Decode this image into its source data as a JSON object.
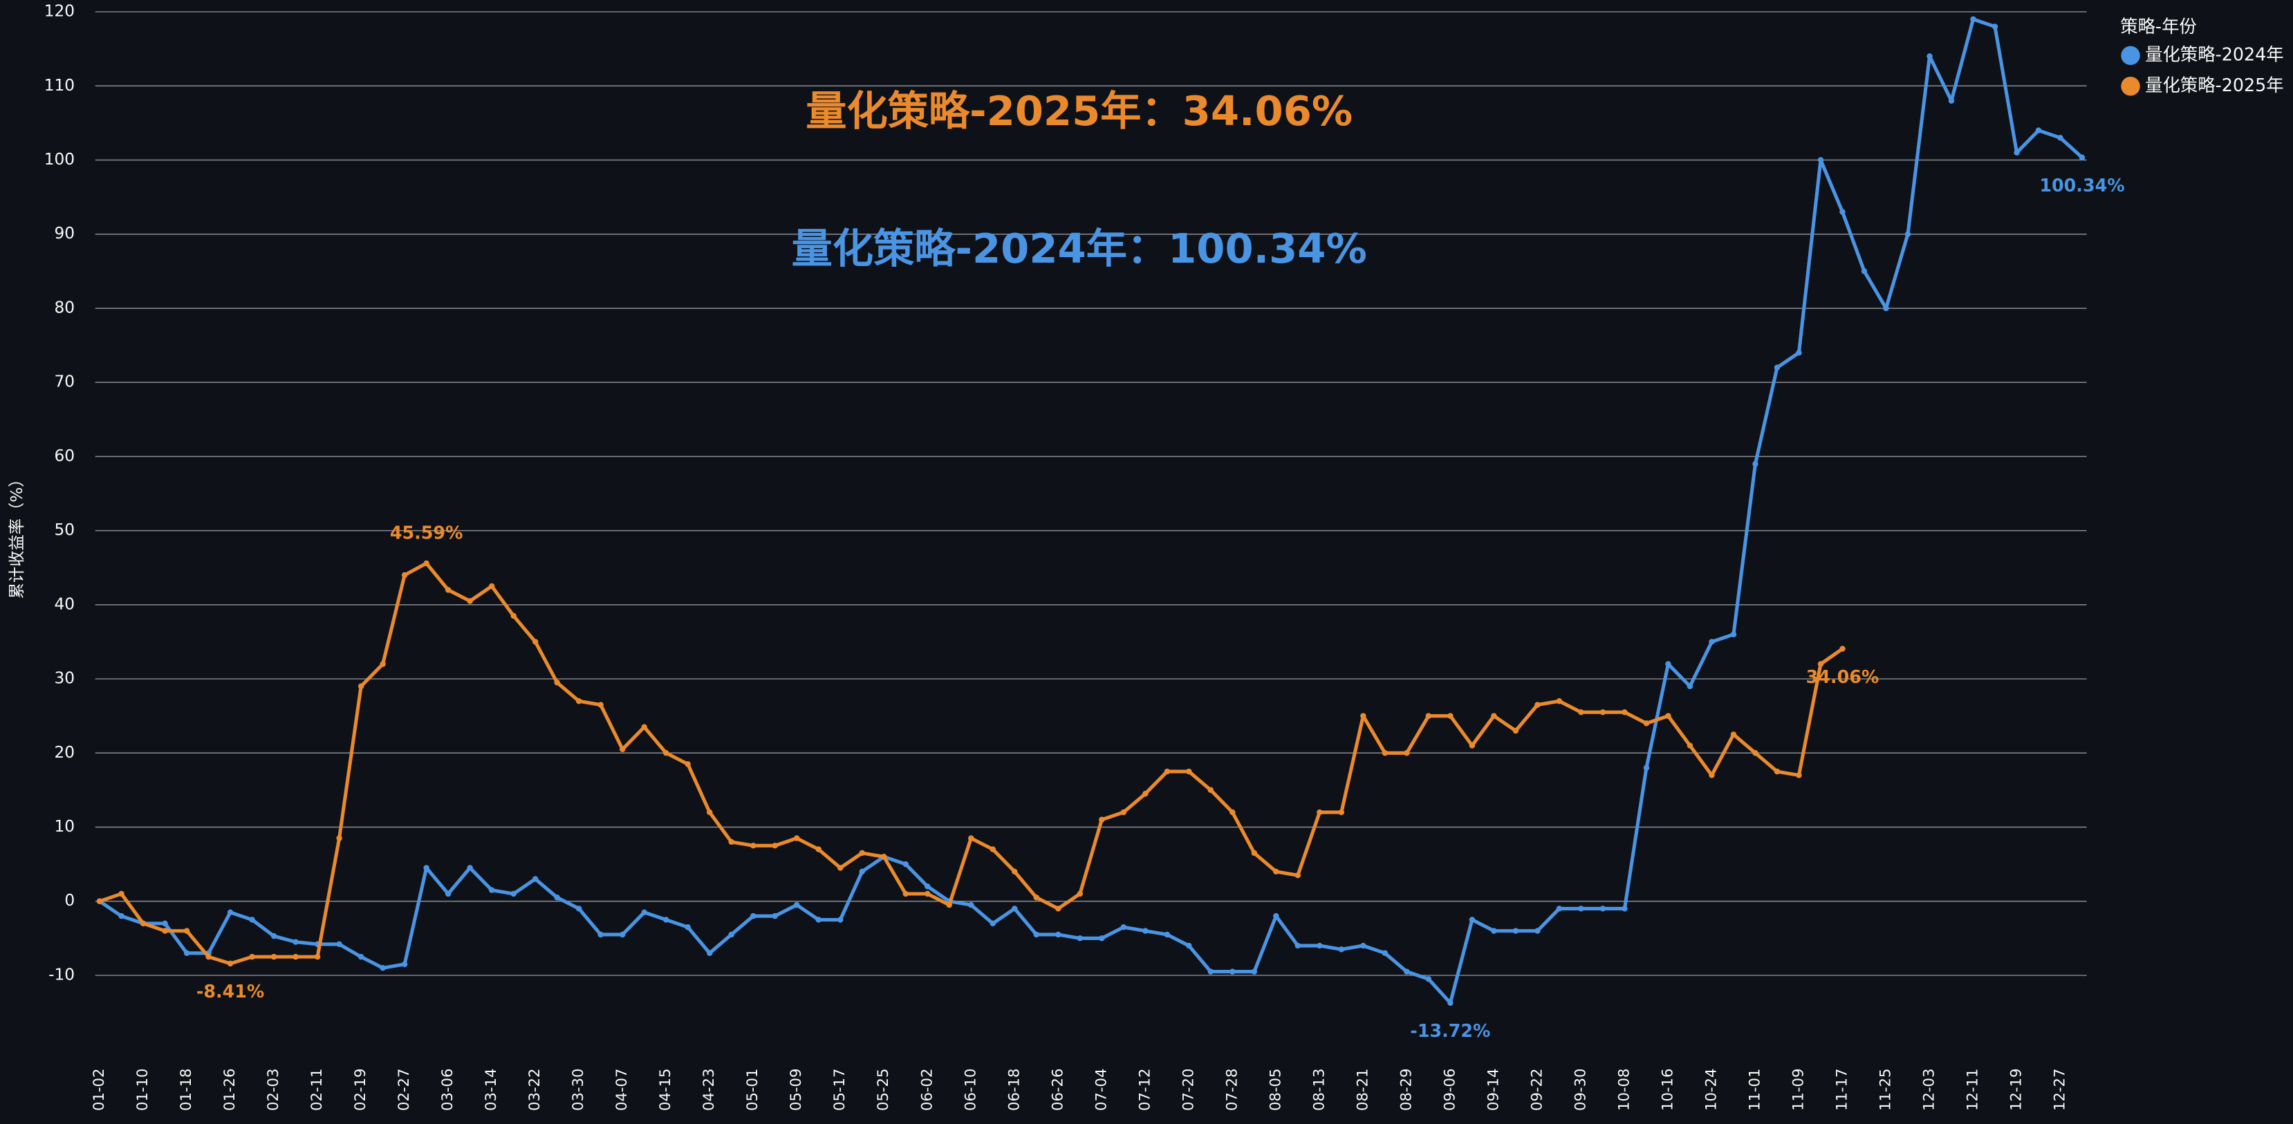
{
  "chart_data": {
    "type": "line",
    "y_label": "累计收益率（%）",
    "legend_title": "策略-年份",
    "legend": "top-right",
    "grid": true,
    "ylim": [
      -20,
      121
    ],
    "yticks": [
      -10,
      0,
      10,
      20,
      30,
      40,
      50,
      60,
      70,
      80,
      90,
      100,
      110,
      120
    ],
    "categories": [
      "01-02",
      null,
      "01-10",
      null,
      "01-18",
      null,
      "01-26",
      null,
      "02-03",
      null,
      "02-11",
      null,
      "02-19",
      null,
      "02-27",
      null,
      "03-06",
      null,
      "03-14",
      null,
      "03-22",
      null,
      "03-30",
      null,
      "04-07",
      null,
      "04-15",
      null,
      "04-23",
      null,
      "05-01",
      null,
      "05-09",
      null,
      "05-17",
      null,
      "05-25",
      null,
      "06-02",
      null,
      "06-10",
      null,
      "06-18",
      null,
      "06-26",
      null,
      "07-04",
      null,
      "07-12",
      null,
      "07-20",
      null,
      "07-28",
      null,
      "08-05",
      null,
      "08-13",
      null,
      "08-21",
      null,
      "08-29",
      null,
      "09-06",
      null,
      "09-14",
      null,
      "09-22",
      null,
      "09-30",
      null,
      "10-08",
      null,
      "10-16",
      null,
      "10-24",
      null,
      "11-01",
      null,
      "11-09",
      null,
      "11-17",
      null,
      "11-25",
      null,
      "12-03",
      null,
      "12-11",
      null,
      "12-19",
      null,
      "12-27",
      null
    ],
    "series": [
      {
        "name": "量化策略-2024年",
        "color": "#4a94e4",
        "summary": "量化策略-2024年：100.34%",
        "values": [
          0,
          -2,
          -3,
          -3,
          -7,
          -7,
          -1.5,
          -2.5,
          -4.7,
          -5.5,
          -5.8,
          -5.8,
          -7.5,
          -9,
          -8.5,
          4.5,
          1,
          4.5,
          1.5,
          1,
          3,
          0.5,
          -1,
          -4.5,
          -4.5,
          -1.5,
          -2.5,
          -3.5,
          -7,
          -4.5,
          -2,
          -2,
          -0.5,
          -2.5,
          -2.5,
          4,
          6,
          5,
          2,
          0,
          -0.5,
          -3,
          -1,
          -4.5,
          -4.5,
          -5,
          -5,
          -3.5,
          -4,
          -4.5,
          -6,
          -9.5,
          -9.5,
          -9.5,
          -2,
          -6,
          -6,
          -6.5,
          -6,
          -7,
          -9.5,
          -10.5,
          -13.72,
          -2.5,
          -4,
          -4,
          -4,
          -1,
          -1,
          -1,
          -1,
          18,
          32,
          29,
          35,
          36,
          59,
          72,
          74,
          100,
          93,
          85,
          80,
          90,
          114,
          108,
          119,
          118,
          101,
          104,
          103,
          100.34
        ],
        "value_labels": [
          null,
          null,
          null,
          null,
          null,
          null,
          null,
          null,
          null,
          null,
          null,
          null,
          null,
          null,
          null,
          null,
          null,
          null,
          null,
          null,
          null,
          null,
          null,
          null,
          null,
          null,
          null,
          null,
          null,
          null,
          null,
          null,
          null,
          null,
          null,
          null,
          null,
          null,
          null,
          null,
          null,
          null,
          null,
          null,
          null,
          null,
          null,
          null,
          null,
          null,
          null,
          null,
          null,
          null,
          null,
          null,
          null,
          null,
          null,
          null,
          null,
          null,
          "-13.72%",
          null,
          null,
          null,
          null,
          null,
          null,
          null,
          null,
          null,
          null,
          null,
          null,
          null,
          null,
          null,
          null,
          null,
          null,
          null,
          null,
          null,
          null,
          null,
          null,
          null,
          null,
          null,
          null,
          "100.34%"
        ]
      },
      {
        "name": "量化策略-2025年",
        "color": "#ea8a2c",
        "summary": "量化策略-2025年：34.06%",
        "values": [
          0,
          1,
          -3,
          -4,
          -4,
          -7.5,
          -8.41,
          -7.5,
          -7.5,
          -7.5,
          -7.5,
          8.5,
          29,
          32,
          44,
          45.59,
          42,
          40.5,
          42.5,
          38.5,
          35,
          29.5,
          27,
          26.5,
          20.5,
          23.5,
          20,
          18.5,
          12,
          8,
          7.5,
          7.5,
          8.5,
          7,
          4.5,
          6.5,
          6,
          1,
          1,
          -0.5,
          8.5,
          7,
          4,
          0.5,
          -1,
          1,
          11,
          12,
          14.5,
          17.5,
          17.5,
          15,
          12,
          6.5,
          4,
          3.5,
          12,
          12,
          25,
          20,
          20,
          25,
          25,
          21,
          25,
          23,
          26.5,
          27,
          25.5,
          25.5,
          25.5,
          24,
          25,
          21,
          17,
          22.5,
          20,
          17.5,
          17,
          32,
          34.06,
          null,
          null,
          null,
          null,
          null,
          null,
          null,
          null,
          null,
          null,
          null
        ],
        "value_labels": [
          null,
          null,
          null,
          null,
          null,
          null,
          "-8.41%",
          null,
          null,
          null,
          null,
          null,
          null,
          null,
          null,
          "45.59%",
          null,
          null,
          null,
          null,
          null,
          null,
          null,
          null,
          null,
          null,
          null,
          null,
          null,
          null,
          null,
          null,
          null,
          null,
          null,
          null,
          null,
          null,
          null,
          null,
          null,
          null,
          null,
          null,
          null,
          null,
          null,
          null,
          null,
          null,
          null,
          null,
          null,
          null,
          null,
          null,
          null,
          null,
          null,
          null,
          null,
          null,
          null,
          null,
          null,
          null,
          null,
          null,
          null,
          null,
          null,
          null,
          null,
          null,
          null,
          null,
          null,
          null,
          null,
          null,
          "34.06%",
          null,
          null,
          null,
          null,
          null,
          null,
          null,
          null,
          null,
          null,
          null
        ]
      }
    ]
  }
}
